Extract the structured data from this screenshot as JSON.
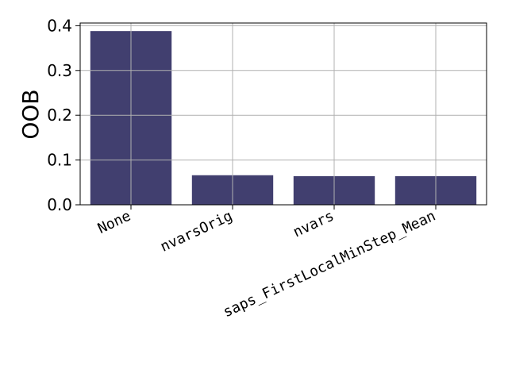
{
  "chart_data": {
    "type": "bar",
    "title": "",
    "xlabel": "",
    "ylabel": "OOB",
    "categories": [
      "None",
      "nvarsOrig",
      "nvars",
      "saps_FirstLocalMinStep_Mean"
    ],
    "values": [
      0.388,
      0.066,
      0.064,
      0.064
    ],
    "ylim": [
      0,
      0.406
    ],
    "yticks": [
      0.0,
      0.1,
      0.2,
      0.3,
      0.4
    ],
    "ytick_labels": [
      "0.0",
      "0.1",
      "0.2",
      "0.3",
      "0.4"
    ],
    "grid": true,
    "bar_color": "#413f6f",
    "grid_color": "#b0b0b0"
  }
}
